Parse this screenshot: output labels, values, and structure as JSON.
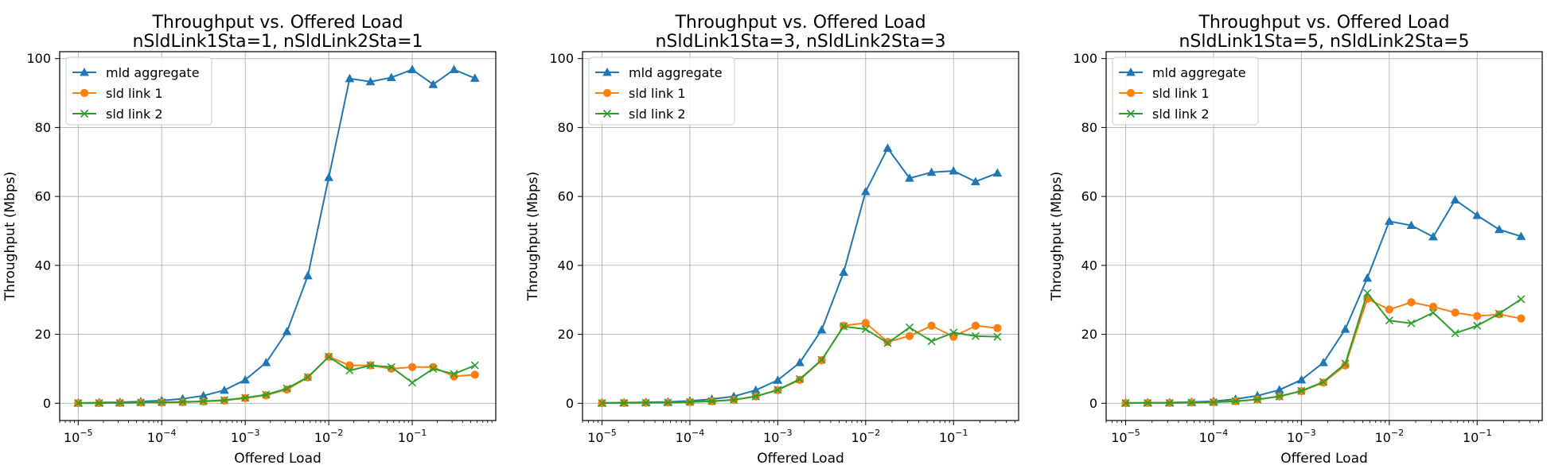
{
  "colors": {
    "mld": "#1f77b4",
    "sld1": "#ff7f0e",
    "sld2": "#2ca02c",
    "grid": "#b0b0b0",
    "axis": "#000000"
  },
  "chart_data": [
    {
      "type": "line",
      "title_line1": "Throughput vs. Offered Load",
      "title_line2": "nSldLink1Sta=1, nSldLink2Sta=1",
      "xlabel": "Offered Load",
      "ylabel": "Throughput (Mbps)",
      "xscale": "log",
      "xlim": [
        6e-06,
        1.0
      ],
      "ylim": [
        -5,
        102
      ],
      "xticks": [
        {
          "value": 1e-05,
          "base": "10",
          "exp": "−5"
        },
        {
          "value": 0.0001,
          "base": "10",
          "exp": "−4"
        },
        {
          "value": 0.001,
          "base": "10",
          "exp": "−3"
        },
        {
          "value": 0.01,
          "base": "10",
          "exp": "−2"
        },
        {
          "value": 0.1,
          "base": "10",
          "exp": "−1"
        }
      ],
      "yticks": [
        0,
        20,
        40,
        60,
        80,
        100
      ],
      "grid": true,
      "legend_placement": "top-left",
      "x": [
        1e-05,
        1.78e-05,
        3.16e-05,
        5.62e-05,
        0.0001,
        0.000178,
        0.000316,
        0.000562,
        0.001,
        0.00178,
        0.00316,
        0.00562,
        0.01,
        0.0178,
        0.0316,
        0.0562,
        0.1,
        0.178,
        0.316,
        0.562
      ],
      "series": [
        {
          "name": "mld aggregate",
          "key": "mld",
          "marker": "triangle",
          "values": [
            0.1,
            0.2,
            0.3,
            0.5,
            0.8,
            1.3,
            2.2,
            3.8,
            6.8,
            11.8,
            20.8,
            37.0,
            65.5,
            94.2,
            93.3,
            94.5,
            96.8,
            92.5,
            96.8,
            94.3
          ]
        },
        {
          "name": "sld link 1",
          "key": "sld1",
          "marker": "circle",
          "values": [
            0.05,
            0.05,
            0.1,
            0.2,
            0.2,
            0.3,
            0.5,
            0.8,
            1.5,
            2.3,
            4.0,
            7.5,
            13.5,
            11.0,
            11.0,
            10.0,
            10.5,
            10.5,
            7.8,
            8.3
          ]
        },
        {
          "name": "sld link 2",
          "key": "sld2",
          "marker": "x",
          "values": [
            0.05,
            0.05,
            0.1,
            0.2,
            0.3,
            0.4,
            0.6,
            0.9,
            1.6,
            2.5,
            4.3,
            7.6,
            13.5,
            9.5,
            11.0,
            10.5,
            6.0,
            10.0,
            8.5,
            11.0
          ]
        }
      ]
    },
    {
      "type": "line",
      "title_line1": "Throughput vs. Offered Load",
      "title_line2": "nSldLink1Sta=3, nSldLink2Sta=3",
      "xlabel": "Offered Load",
      "ylabel": "Throughput (Mbps)",
      "xscale": "log",
      "xlim": [
        6e-06,
        0.55
      ],
      "ylim": [
        -5,
        102
      ],
      "xticks": [
        {
          "value": 1e-05,
          "base": "10",
          "exp": "−5"
        },
        {
          "value": 0.0001,
          "base": "10",
          "exp": "−4"
        },
        {
          "value": 0.001,
          "base": "10",
          "exp": "−3"
        },
        {
          "value": 0.01,
          "base": "10",
          "exp": "−2"
        },
        {
          "value": 0.1,
          "base": "10",
          "exp": "−1"
        }
      ],
      "yticks": [
        0,
        20,
        40,
        60,
        80,
        100
      ],
      "grid": true,
      "legend_placement": "top-left",
      "x": [
        1e-05,
        1.78e-05,
        3.16e-05,
        5.62e-05,
        0.0001,
        0.000178,
        0.000316,
        0.000562,
        0.001,
        0.00178,
        0.00316,
        0.00562,
        0.01,
        0.0178,
        0.0316,
        0.0562,
        0.1,
        0.178,
        0.316
      ],
      "series": [
        {
          "name": "mld aggregate",
          "key": "mld",
          "marker": "triangle",
          "values": [
            0.1,
            0.2,
            0.3,
            0.4,
            0.7,
            1.2,
            2.0,
            3.8,
            6.7,
            11.8,
            21.3,
            38.0,
            61.4,
            74.0,
            65.3,
            67.0,
            67.4,
            64.3,
            66.8
          ]
        },
        {
          "name": "sld link 1",
          "key": "sld1",
          "marker": "circle",
          "values": [
            0.05,
            0.1,
            0.15,
            0.2,
            0.35,
            0.6,
            1.0,
            2.0,
            3.8,
            6.8,
            12.5,
            22.5,
            23.3,
            17.8,
            19.5,
            22.5,
            19.3,
            22.5,
            21.8
          ]
        },
        {
          "name": "sld link 2",
          "key": "sld2",
          "marker": "x",
          "values": [
            0.05,
            0.1,
            0.15,
            0.2,
            0.35,
            0.6,
            1.0,
            2.0,
            3.9,
            7.0,
            12.6,
            22.3,
            21.5,
            17.5,
            22.0,
            18.0,
            20.5,
            19.5,
            19.3
          ]
        }
      ]
    },
    {
      "type": "line",
      "title_line1": "Throughput vs. Offered Load",
      "title_line2": "nSldLink1Sta=5, nSldLink2Sta=5",
      "xlabel": "Offered Load",
      "ylabel": "Throughput (Mbps)",
      "xscale": "log",
      "xlim": [
        6e-06,
        0.55
      ],
      "ylim": [
        -5,
        102
      ],
      "xticks": [
        {
          "value": 1e-05,
          "base": "10",
          "exp": "−5"
        },
        {
          "value": 0.0001,
          "base": "10",
          "exp": "−4"
        },
        {
          "value": 0.001,
          "base": "10",
          "exp": "−3"
        },
        {
          "value": 0.01,
          "base": "10",
          "exp": "−2"
        },
        {
          "value": 0.1,
          "base": "10",
          "exp": "−1"
        }
      ],
      "yticks": [
        0,
        20,
        40,
        60,
        80,
        100
      ],
      "grid": true,
      "legend_placement": "top-left",
      "x": [
        1e-05,
        1.78e-05,
        3.16e-05,
        5.62e-05,
        0.0001,
        0.000178,
        0.000316,
        0.000562,
        0.001,
        0.00178,
        0.00316,
        0.00562,
        0.01,
        0.0178,
        0.0316,
        0.0562,
        0.1,
        0.178,
        0.316
      ],
      "series": [
        {
          "name": "mld aggregate",
          "key": "mld",
          "marker": "triangle",
          "values": [
            0.1,
            0.15,
            0.2,
            0.35,
            0.6,
            1.2,
            2.2,
            3.9,
            6.8,
            11.8,
            21.5,
            36.3,
            52.8,
            51.6,
            48.3,
            59.0,
            54.5,
            50.4,
            48.4
          ]
        },
        {
          "name": "sld link 1",
          "key": "sld1",
          "marker": "circle",
          "values": [
            0.05,
            0.1,
            0.1,
            0.2,
            0.3,
            0.6,
            1.1,
            2.0,
            3.5,
            6.0,
            11.0,
            30.3,
            27.2,
            29.3,
            28.0,
            26.3,
            25.3,
            25.8,
            24.6
          ]
        },
        {
          "name": "sld link 2",
          "key": "sld2",
          "marker": "x",
          "values": [
            0.05,
            0.1,
            0.1,
            0.2,
            0.3,
            0.6,
            1.1,
            2.0,
            3.6,
            6.2,
            11.5,
            32.0,
            24.0,
            23.2,
            26.3,
            20.3,
            22.5,
            26.0,
            30.2
          ]
        }
      ]
    }
  ]
}
